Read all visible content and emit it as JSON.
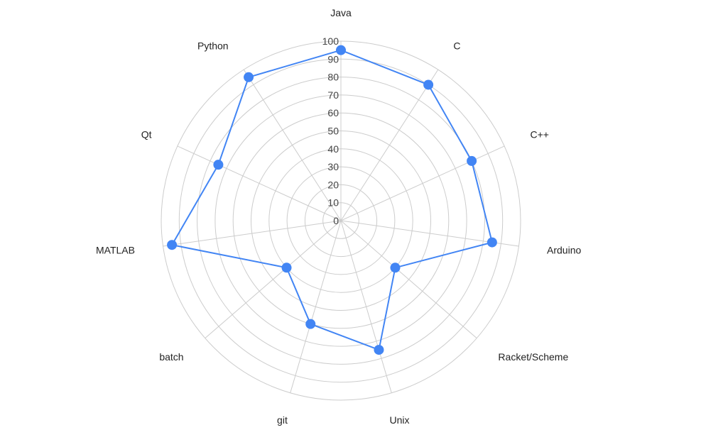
{
  "chart_data": {
    "type": "radar",
    "categories": [
      "Java",
      "C",
      "C++",
      "Arduino",
      "Racket/Scheme",
      "Unix",
      "git",
      "batch",
      "MATLAB",
      "Qt",
      "Python"
    ],
    "series": [
      {
        "values": [
          95,
          90,
          80,
          85,
          40,
          75,
          60,
          40,
          95,
          75,
          95
        ]
      }
    ],
    "rlim": [
      0,
      100
    ],
    "rticks": [
      "0",
      "10",
      "20",
      "30",
      "40",
      "50",
      "60",
      "70",
      "80",
      "90",
      "100"
    ],
    "grid": true,
    "colors": {
      "series": "#4285f4",
      "grid": "#cccccc"
    }
  }
}
